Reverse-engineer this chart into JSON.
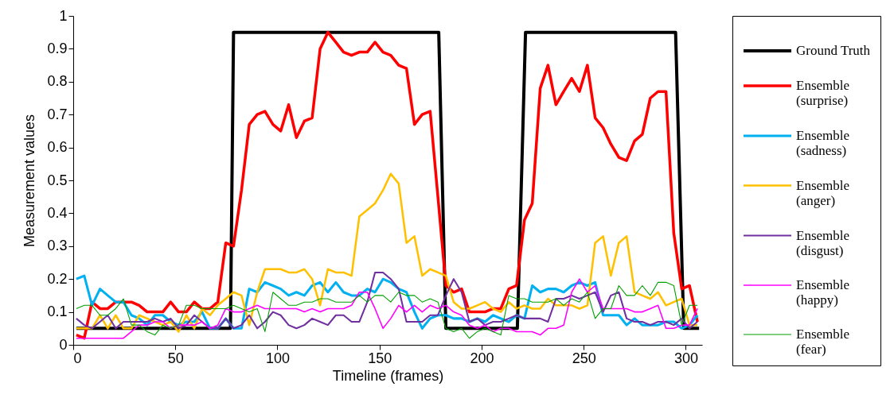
{
  "chart_data": {
    "type": "line",
    "xlabel": "Timeline (frames)",
    "ylabel": "Measurement values",
    "x": [
      1.5,
      5.4,
      9.2,
      13.1,
      16.9,
      20.8,
      24.6,
      28.5,
      32.3,
      36.2,
      40.0,
      43.9,
      47.7,
      51.6,
      55.4,
      59.3,
      63.1,
      67.0,
      70.8,
      74.7,
      78.5,
      82.4,
      86.2,
      90.1,
      93.9,
      97.8,
      101.6,
      105.5,
      109.3,
      113.2,
      117.0,
      120.9,
      124.7,
      128.6,
      132.4,
      136.3,
      140.1,
      144.0,
      147.8,
      151.7,
      155.5,
      159.4,
      163.2,
      167.1,
      170.9,
      174.8,
      178.6,
      182.5,
      186.3,
      190.2,
      194.0,
      197.9,
      201.7,
      205.6,
      209.4,
      213.3,
      217.1,
      221.0,
      224.8,
      228.7,
      232.5,
      236.4,
      240.2,
      244.1,
      247.9,
      251.8,
      255.6,
      259.5,
      263.3,
      267.2,
      271.0,
      274.9,
      278.7,
      282.6,
      286.4,
      290.3,
      294.1,
      298.0,
      301.8,
      305.7
    ],
    "series": [
      {
        "name": "Ground Truth",
        "color": "#000000",
        "x": [
          1.5,
          77,
          78.5,
          179,
          182.5,
          217.5,
          221.5,
          295,
          299,
          306.5
        ],
        "values": [
          0.05,
          0.05,
          0.95,
          0.95,
          0.05,
          0.05,
          0.95,
          0.95,
          0.05,
          0.05
        ]
      },
      {
        "name": "Ensemble (surprise)",
        "color": "#ff0000",
        "values": [
          0.03,
          0.02,
          0.13,
          0.11,
          0.11,
          0.13,
          0.13,
          0.13,
          0.12,
          0.1,
          0.1,
          0.1,
          0.13,
          0.1,
          0.1,
          0.13,
          0.11,
          0.11,
          0.13,
          0.31,
          0.3,
          0.47,
          0.67,
          0.7,
          0.71,
          0.67,
          0.65,
          0.73,
          0.63,
          0.68,
          0.69,
          0.9,
          0.95,
          0.92,
          0.89,
          0.88,
          0.89,
          0.89,
          0.92,
          0.89,
          0.88,
          0.85,
          0.84,
          0.67,
          0.7,
          0.71,
          0.45,
          0.18,
          0.16,
          0.17,
          0.1,
          0.1,
          0.1,
          0.11,
          0.11,
          0.17,
          0.18,
          0.38,
          0.43,
          0.78,
          0.85,
          0.73,
          0.77,
          0.81,
          0.77,
          0.85,
          0.69,
          0.66,
          0.61,
          0.57,
          0.56,
          0.62,
          0.64,
          0.75,
          0.77,
          0.77,
          0.34,
          0.17,
          0.18,
          0.07
        ]
      },
      {
        "name": "Ensemble (sadness)",
        "color": "#00b0f0",
        "values": [
          0.2,
          0.21,
          0.12,
          0.17,
          0.15,
          0.13,
          0.13,
          0.09,
          0.08,
          0.06,
          0.09,
          0.09,
          0.07,
          0.06,
          0.07,
          0.07,
          0.1,
          0.05,
          0.05,
          0.08,
          0.05,
          0.05,
          0.17,
          0.16,
          0.19,
          0.18,
          0.17,
          0.15,
          0.16,
          0.15,
          0.18,
          0.19,
          0.16,
          0.19,
          0.16,
          0.15,
          0.15,
          0.17,
          0.16,
          0.2,
          0.19,
          0.17,
          0.16,
          0.1,
          0.05,
          0.08,
          0.09,
          0.09,
          0.08,
          0.08,
          0.07,
          0.08,
          0.07,
          0.09,
          0.08,
          0.07,
          0.09,
          0.08,
          0.18,
          0.16,
          0.17,
          0.17,
          0.16,
          0.18,
          0.19,
          0.18,
          0.19,
          0.09,
          0.09,
          0.09,
          0.06,
          0.08,
          0.06,
          0.06,
          0.06,
          0.07,
          0.07,
          0.05,
          0.06,
          0.09
        ]
      },
      {
        "name": "Ensemble (anger)",
        "color": "#ffc000",
        "values": [
          0.05,
          0.05,
          0.05,
          0.09,
          0.05,
          0.09,
          0.05,
          0.05,
          0.09,
          0.08,
          0.07,
          0.06,
          0.07,
          0.04,
          0.09,
          0.05,
          0.11,
          0.09,
          0.12,
          0.14,
          0.16,
          0.15,
          0.06,
          0.16,
          0.23,
          0.23,
          0.23,
          0.22,
          0.22,
          0.23,
          0.2,
          0.12,
          0.23,
          0.22,
          0.22,
          0.21,
          0.39,
          0.41,
          0.43,
          0.47,
          0.52,
          0.49,
          0.31,
          0.33,
          0.21,
          0.23,
          0.22,
          0.21,
          0.13,
          0.11,
          0.11,
          0.12,
          0.13,
          0.11,
          0.1,
          0.13,
          0.11,
          0.12,
          0.11,
          0.11,
          0.14,
          0.12,
          0.12,
          0.12,
          0.11,
          0.12,
          0.31,
          0.33,
          0.21,
          0.31,
          0.33,
          0.16,
          0.15,
          0.14,
          0.16,
          0.12,
          0.13,
          0.14,
          0.06,
          0.06
        ]
      },
      {
        "name": "Ensemble (disgust)",
        "color": "#7030a0",
        "values": [
          0.08,
          0.06,
          0.05,
          0.07,
          0.09,
          0.05,
          0.07,
          0.07,
          0.07,
          0.07,
          0.08,
          0.07,
          0.08,
          0.05,
          0.06,
          0.09,
          0.07,
          0.05,
          0.05,
          0.08,
          0.05,
          0.06,
          0.09,
          0.05,
          0.07,
          0.1,
          0.09,
          0.06,
          0.05,
          0.06,
          0.08,
          0.07,
          0.06,
          0.09,
          0.09,
          0.07,
          0.07,
          0.13,
          0.22,
          0.22,
          0.2,
          0.17,
          0.07,
          0.07,
          0.07,
          0.09,
          0.09,
          0.15,
          0.2,
          0.16,
          0.07,
          0.08,
          0.06,
          0.07,
          0.07,
          0.08,
          0.09,
          0.08,
          0.08,
          0.08,
          0.07,
          0.14,
          0.14,
          0.15,
          0.14,
          0.15,
          0.16,
          0.1,
          0.15,
          0.16,
          0.08,
          0.07,
          0.07,
          0.06,
          0.07,
          0.07,
          0.06,
          0.08,
          0.05,
          0.07
        ]
      },
      {
        "name": "Ensemble (happy)",
        "color": "#ff00ff",
        "values": [
          0.02,
          0.02,
          0.02,
          0.02,
          0.02,
          0.02,
          0.02,
          0.04,
          0.06,
          0.06,
          0.07,
          0.07,
          0.05,
          0.06,
          0.06,
          0.06,
          0.07,
          0.05,
          0.06,
          0.11,
          0.1,
          0.1,
          0.11,
          0.12,
          0.11,
          0.11,
          0.11,
          0.11,
          0.11,
          0.1,
          0.11,
          0.1,
          0.11,
          0.11,
          0.11,
          0.12,
          0.16,
          0.16,
          0.11,
          0.05,
          0.08,
          0.12,
          0.1,
          0.12,
          0.1,
          0.12,
          0.11,
          0.12,
          0.1,
          0.09,
          0.06,
          0.05,
          0.06,
          0.04,
          0.05,
          0.05,
          0.04,
          0.04,
          0.04,
          0.03,
          0.05,
          0.05,
          0.06,
          0.16,
          0.2,
          0.16,
          0.18,
          0.11,
          0.11,
          0.11,
          0.11,
          0.1,
          0.1,
          0.11,
          0.12,
          0.05,
          0.05,
          0.06,
          0.06,
          0.11
        ]
      },
      {
        "name": "Ensemble (fear)",
        "color": "#00a000",
        "values": [
          0.11,
          0.12,
          0.12,
          0.09,
          0.09,
          0.11,
          0.14,
          0.06,
          0.06,
          0.04,
          0.03,
          0.06,
          0.05,
          0.06,
          0.12,
          0.12,
          0.11,
          0.11,
          0.11,
          0.11,
          0.12,
          0.11,
          0.1,
          0.11,
          0.04,
          0.16,
          0.14,
          0.12,
          0.12,
          0.13,
          0.13,
          0.14,
          0.14,
          0.13,
          0.13,
          0.13,
          0.15,
          0.13,
          0.15,
          0.15,
          0.13,
          0.16,
          0.15,
          0.15,
          0.13,
          0.14,
          0.13,
          0.05,
          0.04,
          0.05,
          0.02,
          0.04,
          0.05,
          0.04,
          0.03,
          0.15,
          0.14,
          0.14,
          0.13,
          0.13,
          0.13,
          0.14,
          0.12,
          0.14,
          0.13,
          0.16,
          0.08,
          0.11,
          0.11,
          0.18,
          0.15,
          0.15,
          0.18,
          0.15,
          0.19,
          0.19,
          0.18,
          0.06,
          0.12,
          0.12
        ]
      }
    ],
    "xlim": [
      0,
      308
    ],
    "xticks": [
      0,
      50,
      100,
      150,
      200,
      250,
      300
    ],
    "ylim": [
      0,
      1
    ],
    "yticks": [
      0,
      0.1,
      0.2,
      0.3,
      0.4,
      0.5,
      0.6,
      0.7,
      0.8,
      0.9,
      1
    ],
    "legend": "right",
    "line_style": "solid"
  }
}
